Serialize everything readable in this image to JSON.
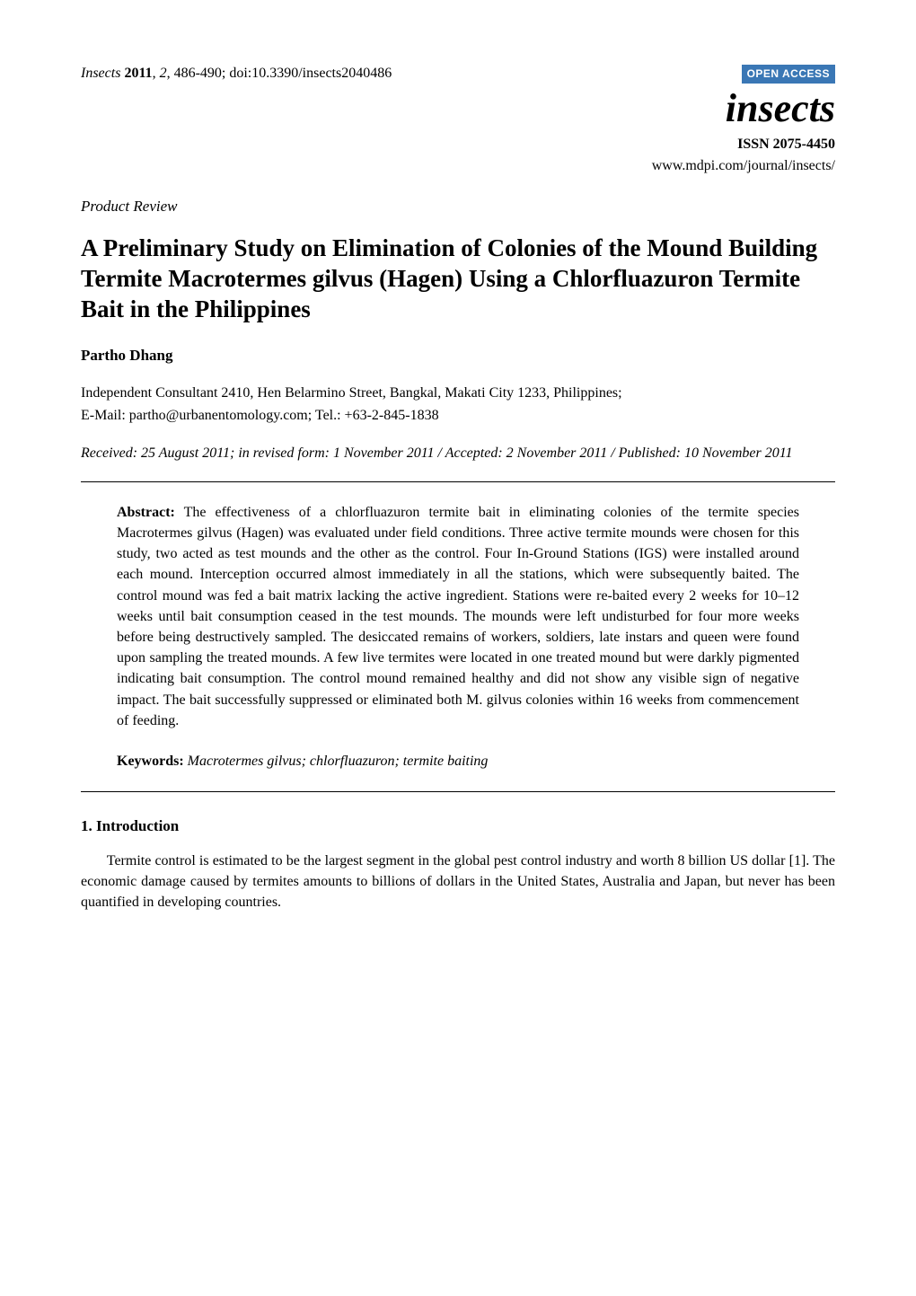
{
  "header": {
    "journal_name_italic": "Insects",
    "year_bold": "2011",
    "volume_italic": "2",
    "pages": "486-490",
    "doi": "doi:10.3390/insects2040486",
    "open_access_label": "OPEN ACCESS",
    "journal_logo_text": "insects",
    "issn": "ISSN 2075-4450",
    "journal_url": "www.mdpi.com/journal/insects/",
    "colors": {
      "oa_badge_bg": "#3a77b5",
      "oa_badge_text": "#ffffff",
      "page_bg": "#ffffff",
      "text": "#000000",
      "rule": "#000000"
    },
    "fonts": {
      "body_family": "Times New Roman",
      "body_size_pt": 12,
      "title_size_pt": 20,
      "logo_size_pt": 33,
      "oa_badge_family": "Arial",
      "oa_badge_size_pt": 9
    }
  },
  "article_type": "Product Review",
  "title": "A Preliminary Study on Elimination of Colonies of the Mound Building Termite Macrotermes gilvus (Hagen) Using a Chlorfluazuron Termite Bait in the Philippines",
  "authors": "Partho Dhang",
  "affiliation": "Independent Consultant 2410, Hen Belarmino Street, Bangkal, Makati City 1233, Philippines;",
  "contact": "E-Mail: partho@urbanentomology.com; Tel.: +63-2-845-1838",
  "dates": "Received: 25 August 2011; in revised form: 1 November 2011 / Accepted: 2 November 2011 / Published: 10 November 2011",
  "abstract": {
    "label": "Abstract:",
    "text": "The effectiveness of a chlorfluazuron termite bait in eliminating colonies of the termite species Macrotermes gilvus (Hagen) was evaluated under field conditions. Three active termite mounds were chosen for this study, two acted as test mounds and the other as the control. Four In-Ground Stations (IGS) were installed around each mound. Interception occurred almost immediately in all the stations, which were subsequently baited. The control mound was fed a bait matrix lacking the active ingredient. Stations were re-baited every 2 weeks for 10–12 weeks until bait consumption ceased in the test mounds. The mounds were left undisturbed for four more weeks before being destructively sampled. The desiccated remains of workers, soldiers, late instars and queen were found upon sampling the treated mounds. A few live termites were located in one treated mound but were darkly pigmented indicating bait consumption. The control mound remained healthy and did not show any visible sign of negative impact. The bait successfully suppressed or eliminated both M. gilvus colonies within 16 weeks from commencement of feeding."
  },
  "keywords": {
    "label": "Keywords:",
    "text": "Macrotermes gilvus; chlorfluazuron; termite baiting"
  },
  "sections": {
    "intro_heading": "1. Introduction",
    "intro_para_1": "Termite control is estimated to be the largest segment in the global pest control industry and worth 8 billion US dollar [1]. The economic damage caused by termites amounts to billions of dollars in the United States, Australia and Japan, but never has been quantified in developing countries."
  }
}
